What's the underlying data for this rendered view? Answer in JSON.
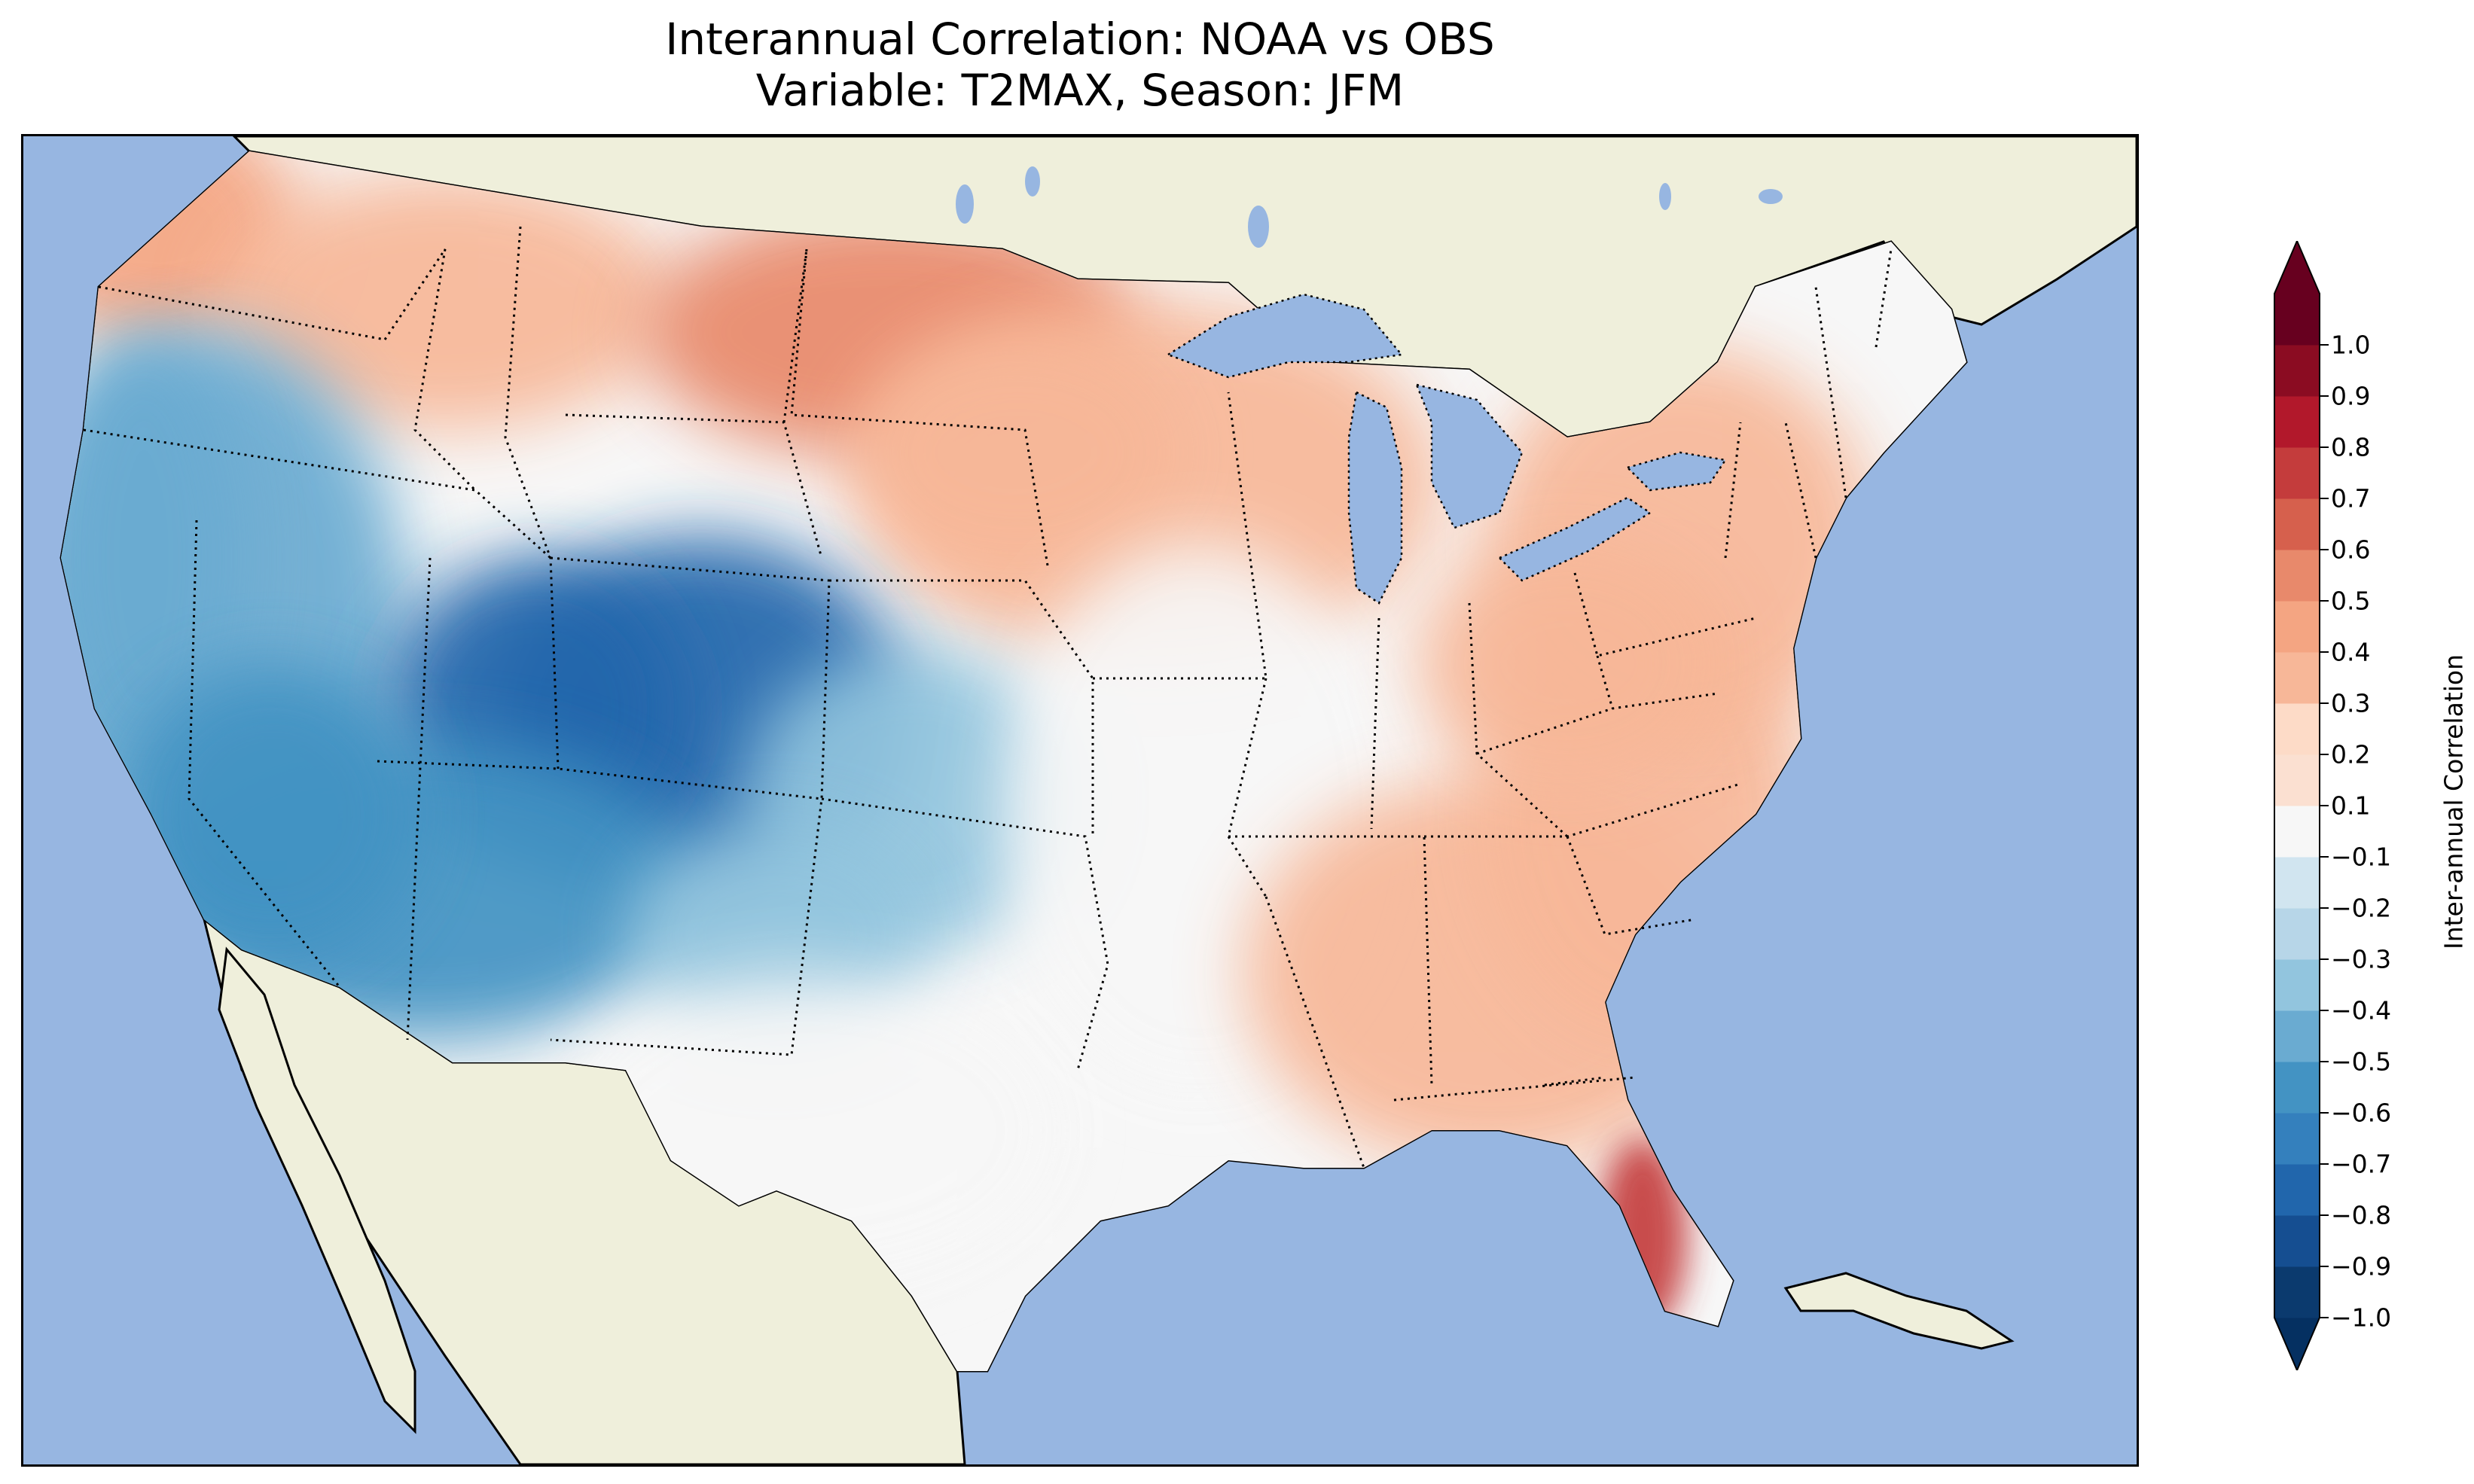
{
  "title": {
    "line1": "Interannual Correlation: NOAA vs OBS",
    "line2": "Variable: T2MAX, Season: JFM"
  },
  "map": {
    "ocean_color": "#97b6e1",
    "land_color": "#efefdb",
    "lake_color": "#97b6e1",
    "state_border_style": "dotted",
    "regions": [
      {
        "name": "northwest-coast",
        "value": 0.45
      },
      {
        "name": "northern-rockies",
        "value": 0.3
      },
      {
        "name": "north-dakota",
        "value": 0.5
      },
      {
        "name": "upper-midwest",
        "value": 0.3
      },
      {
        "name": "california-great-basin",
        "value": -0.5
      },
      {
        "name": "colorado-utah",
        "value": -0.75
      },
      {
        "name": "southwest",
        "value": -0.6
      },
      {
        "name": "central-plains",
        "value": -0.35
      },
      {
        "name": "mississippi-valley",
        "value": 0.0
      },
      {
        "name": "texas",
        "value": -0.05
      },
      {
        "name": "southeast",
        "value": 0.3
      },
      {
        "name": "northeast",
        "value": 0.35
      },
      {
        "name": "south-florida",
        "value": 0.7
      }
    ]
  },
  "colorbar": {
    "label": "Inter-annual Correlation",
    "min": -1.0,
    "max": 1.0,
    "extend": "both",
    "levels": [
      -1.0,
      -0.9,
      -0.8,
      -0.7,
      -0.6,
      -0.5,
      -0.4,
      -0.3,
      -0.2,
      -0.1,
      0.1,
      0.2,
      0.3,
      0.4,
      0.5,
      0.6,
      0.7,
      0.8,
      0.9,
      1.0
    ],
    "tick_labels": [
      "−1.0",
      "−0.9",
      "−0.8",
      "−0.7",
      "−0.6",
      "−0.5",
      "−0.4",
      "−0.3",
      "−0.2",
      "−0.1",
      "0.1",
      "0.2",
      "0.3",
      "0.4",
      "0.5",
      "0.6",
      "0.7",
      "0.8",
      "0.9",
      "1.0"
    ],
    "colors": [
      "#0b3a6e",
      "#154e91",
      "#2166ac",
      "#3480bd",
      "#4393c3",
      "#6aabd1",
      "#92c5de",
      "#b7d6e8",
      "#d1e5f0",
      "#f7f7f7",
      "#fbe0d1",
      "#fddbc7",
      "#f7b798",
      "#f4a582",
      "#e8896b",
      "#d6604d",
      "#c43c3c",
      "#b2182b",
      "#8b0c22",
      "#67001f"
    ],
    "under_color": "#053061",
    "over_color": "#67001f"
  }
}
